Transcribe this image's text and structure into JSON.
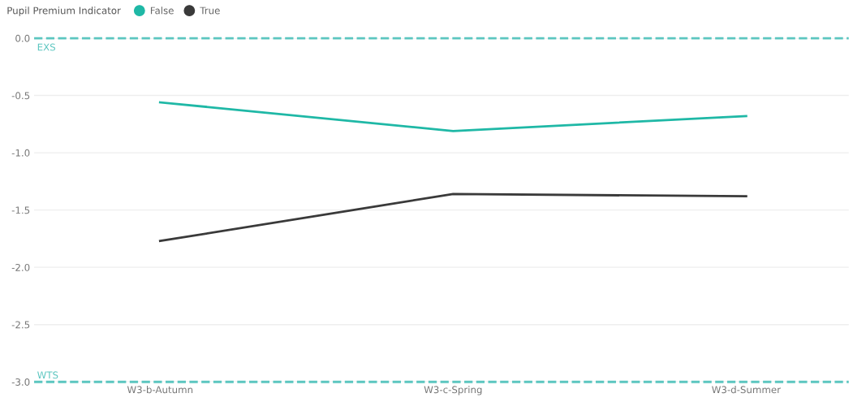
{
  "chart_data": {
    "type": "line",
    "legend_title": "Pupil Premium Indicator",
    "legend": "top left",
    "categories": [
      "W3-b-Autumn",
      "W3-c-Spring",
      "W3-d-Summer"
    ],
    "series": [
      {
        "name": "False",
        "color": "#1fb8a6",
        "values": [
          -0.56,
          -0.81,
          -0.68
        ]
      },
      {
        "name": "True",
        "color": "#3a3a3a",
        "values": [
          -1.77,
          -1.36,
          -1.38
        ]
      }
    ],
    "ylim": [
      -3.0,
      0.0
    ],
    "yticks": [
      {
        "value": -3.0,
        "label": "-3.0"
      },
      {
        "value": -2.5,
        "label": "-2.5"
      },
      {
        "value": -2.0,
        "label": "-2.0"
      },
      {
        "value": -1.5,
        "label": "-1.5"
      },
      {
        "value": -1.0,
        "label": "-1.0"
      },
      {
        "value": -0.5,
        "label": "-0.5"
      },
      {
        "value": 0.0,
        "label": "0.0"
      }
    ],
    "grid": "y",
    "marker": "none",
    "line_style": "solid",
    "ref_lines": [
      {
        "axis": "y",
        "value": 0.0,
        "label": "EXS",
        "color": "#5cc6c0",
        "line_style": "dashed"
      },
      {
        "axis": "y",
        "value": -3.0,
        "label": "WTS",
        "color": "#5cc6c0",
        "line_style": "dashed"
      }
    ]
  }
}
